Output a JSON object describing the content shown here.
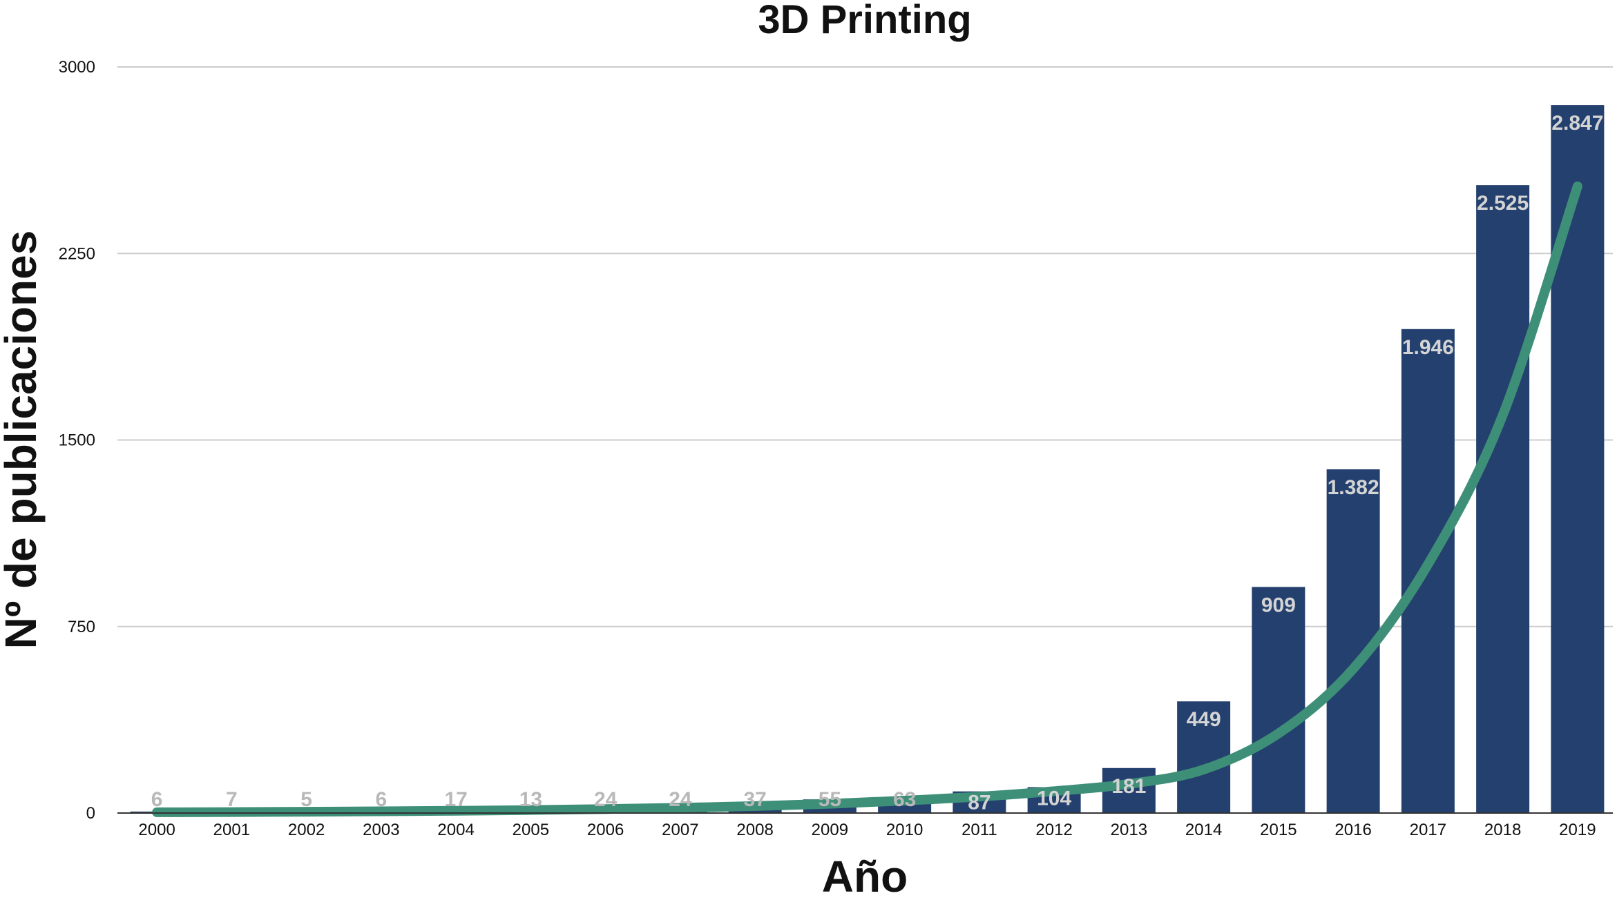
{
  "chart_data": {
    "type": "bar",
    "title": "3D Printing",
    "xlabel": "Año",
    "ylabel": "Nº de publicaciones",
    "categories": [
      "2000",
      "2001",
      "2002",
      "2003",
      "2004",
      "2005",
      "2006",
      "2007",
      "2008",
      "2009",
      "2010",
      "2011",
      "2012",
      "2013",
      "2014",
      "2015",
      "2016",
      "2017",
      "2018",
      "2019"
    ],
    "values": [
      6,
      7,
      5,
      6,
      17,
      13,
      24,
      24,
      37,
      55,
      63,
      87,
      104,
      181,
      449,
      909,
      1382,
      1946,
      2525,
      2847
    ],
    "value_labels": [
      "6",
      "7",
      "5",
      "6",
      "17",
      "13",
      "24",
      "24",
      "37",
      "55",
      "63",
      "87",
      "104",
      "181",
      "449",
      "909",
      "1.382",
      "1.946",
      "2.525",
      "2.847"
    ],
    "ylim": [
      0,
      3000
    ],
    "yticks": [
      0,
      750,
      1500,
      2250,
      3000
    ],
    "ytick_labels": [
      "0",
      "750",
      "1500",
      "2250",
      "3000"
    ],
    "grid": true,
    "legend": "none",
    "trendline": {
      "type": "exponential",
      "x": [
        "2000",
        "2001",
        "2002",
        "2003",
        "2004",
        "2005",
        "2006",
        "2007",
        "2008",
        "2009",
        "2010",
        "2011",
        "2012",
        "2013",
        "2014",
        "2015",
        "2016",
        "2017",
        "2018",
        "2019"
      ],
      "values": [
        3,
        3.9,
        5.2,
        6.9,
        9.1,
        12,
        16,
        21,
        28,
        37,
        50,
        66,
        88,
        117,
        175,
        320,
        580,
        1000,
        1600,
        2520
      ]
    },
    "colors": {
      "bar": "#24406e",
      "trendline": "#3e8f78",
      "label_inside": "#d4d4d4",
      "label_small": "#b8b8b8"
    }
  }
}
